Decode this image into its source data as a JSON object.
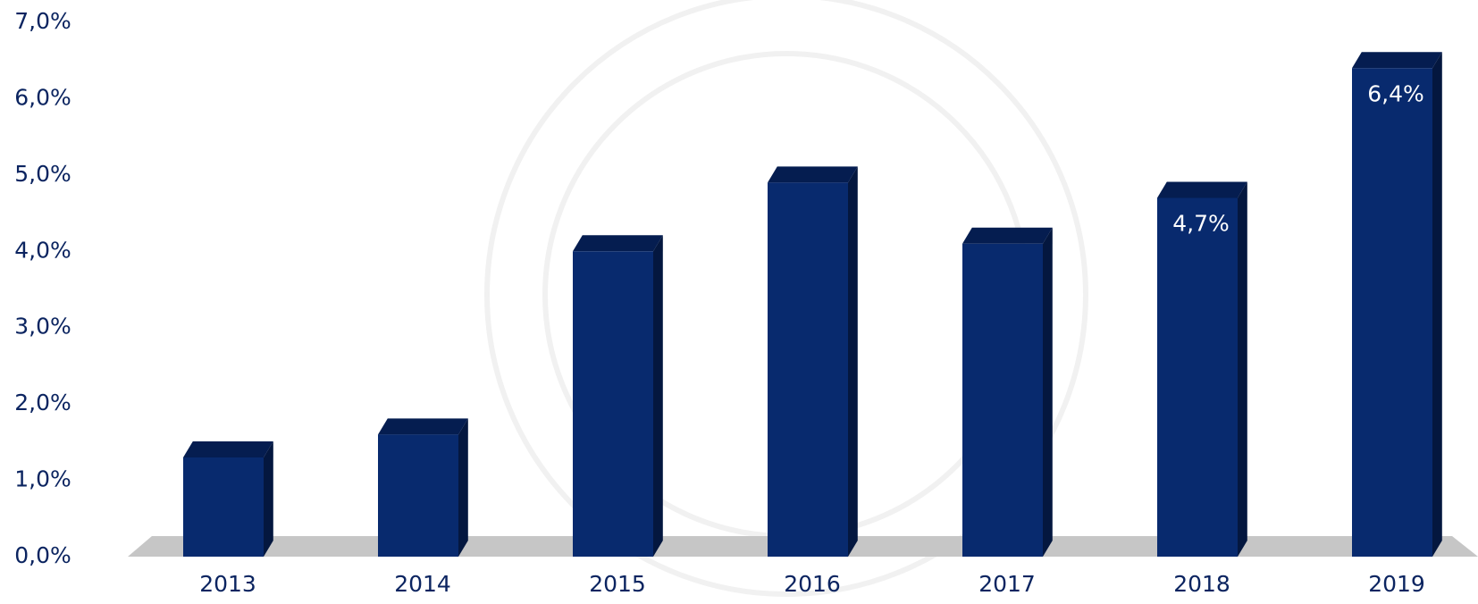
{
  "chart_data": {
    "type": "bar",
    "categories": [
      "2013",
      "2014",
      "2015",
      "2016",
      "2017",
      "2018",
      "2019"
    ],
    "values": [
      1.3,
      1.6,
      4.0,
      4.9,
      4.1,
      4.7,
      6.4
    ],
    "value_labels": [
      null,
      null,
      null,
      null,
      null,
      "4,7%",
      "6,4%"
    ],
    "color": "#082a6e",
    "ylim": [
      0,
      7
    ],
    "yticks": [
      {
        "value": 0,
        "label": "0,0%"
      },
      {
        "value": 1,
        "label": "1,0%"
      },
      {
        "value": 2,
        "label": "2,0%"
      },
      {
        "value": 3,
        "label": "3,0%"
      },
      {
        "value": 4,
        "label": "4,0%"
      },
      {
        "value": 5,
        "label": "5,0%"
      },
      {
        "value": 6,
        "label": "6,0%"
      },
      {
        "value": 7,
        "label": "7,0%"
      }
    ],
    "grid": false
  }
}
